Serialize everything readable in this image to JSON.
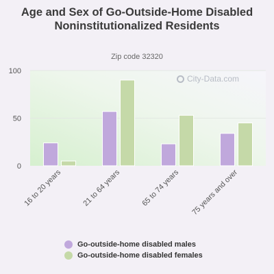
{
  "chart_data": {
    "type": "bar",
    "title": "Age and Sex of Go-Outside-Home Disabled Noninstitutionalized Residents",
    "subtitle": "Zip code 32320",
    "categories": [
      "16 to 20 years",
      "21 to 64 years",
      "65 to 74 years",
      "75 years and over"
    ],
    "series": [
      {
        "name": "Go-outside-home disabled males",
        "values": [
          24,
          57,
          23,
          34
        ],
        "color": "#c0a8dc"
      },
      {
        "name": "Go-outside-home disabled females",
        "values": [
          5,
          90,
          53,
          45
        ],
        "color": "#c5d9a8"
      }
    ],
    "ylim": [
      0,
      100
    ],
    "yticks": [
      0,
      50,
      100
    ],
    "grid": true,
    "legend_position": "bottom",
    "watermark": "City-Data.com"
  }
}
